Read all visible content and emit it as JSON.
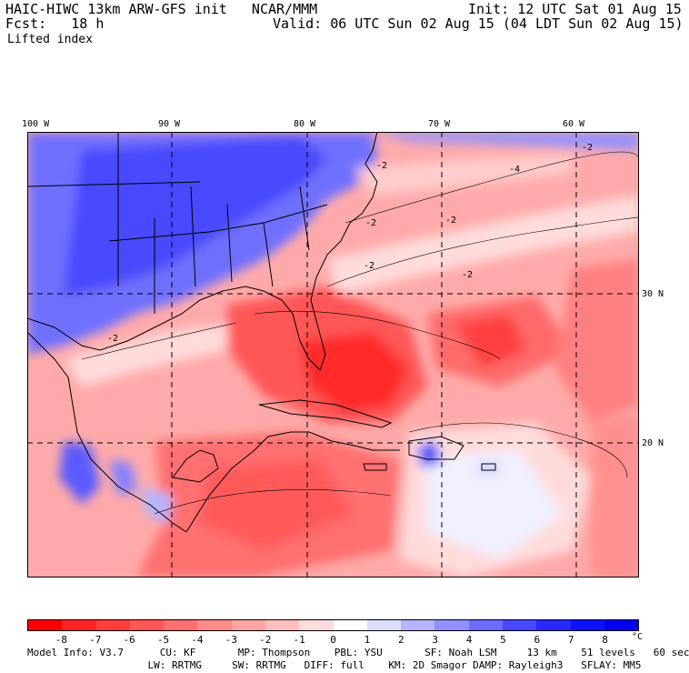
{
  "header": {
    "model_line": "HAIC-HIWC 13km ARW-GFS init   NCAR/MMM",
    "init_line": "Init: 12 UTC Sat 01 Aug 15",
    "fcst_line": "Fcst:   18 h",
    "valid_line": "Valid: 06 UTC Sun 02 Aug 15 (04 LDT Sun 02 Aug 15)",
    "field_label": "Lifted index"
  },
  "axes": {
    "longitudes": [
      "100 W",
      "90 W",
      "80 W",
      "70 W",
      "60 W"
    ],
    "latitudes": [
      "30 N",
      "20 N"
    ]
  },
  "contour_labels": [
    "-2",
    "-2",
    "-2",
    "-2",
    "-2",
    "-4",
    "-2",
    "-2"
  ],
  "colorbar": {
    "ticks": [
      "-8",
      "-7",
      "-6",
      "-5",
      "-4",
      "-3",
      "-2",
      "-1",
      "0",
      "1",
      "2",
      "3",
      "4",
      "5",
      "6",
      "7",
      "8"
    ],
    "unit": "°C",
    "colors": [
      "#ff0000",
      "#ff2222",
      "#ff3c3c",
      "#ff5656",
      "#ff7070",
      "#ff8a8a",
      "#ffa4a4",
      "#ffbebe",
      "#ffdcdc",
      "#ffffff",
      "#dcdcff",
      "#b4b4ff",
      "#9090ff",
      "#6c6cff",
      "#4848ff",
      "#2828ff",
      "#1010ff",
      "#0000ee"
    ]
  },
  "model_info": {
    "line1": "Model Info: V3.7      CU: KF       MP: Thompson    PBL: YSU       SF: Noah LSM     13 km    51 levels   60 sec",
    "line2": "                    LW: RRTMG     SW: RRTMG   DIFF: full    KM: 2D Smagor DAMP: Rayleigh3   SFLAY: MM5"
  }
}
